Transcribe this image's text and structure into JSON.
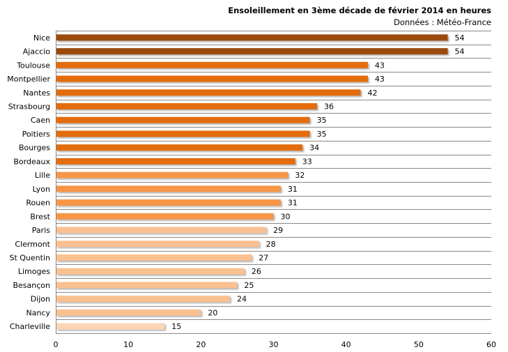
{
  "chart_data": {
    "type": "bar",
    "orientation": "horizontal",
    "title": "Ensoleillement en 3ème décade de février 2014 en heures",
    "subtitle": "Données : Météo-France",
    "categories": [
      "Nice",
      "Ajaccio",
      "Toulouse",
      "Montpellier",
      "Nantes",
      "Strasbourg",
      "Caen",
      "Poitiers",
      "Bourges",
      "Bordeaux",
      "Lille",
      "Lyon",
      "Rouen",
      "Brest",
      "Paris",
      "Clermont",
      "St Quentin",
      "Limoges",
      "Besançon",
      "Dijon",
      "Nancy",
      "Charleville"
    ],
    "values": [
      54,
      54,
      43,
      43,
      42,
      36,
      35,
      35,
      34,
      33,
      32,
      31,
      31,
      30,
      29,
      28,
      27,
      26,
      25,
      24,
      20,
      15
    ],
    "colors": [
      "#9c4a0a",
      "#9c4a0a",
      "#e36c0a",
      "#e36c0a",
      "#e36c0a",
      "#e36c0a",
      "#e36c0a",
      "#e36c0a",
      "#e36c0a",
      "#e36c0a",
      "#f79646",
      "#f79646",
      "#f79646",
      "#f79646",
      "#fac090",
      "#fac090",
      "#fac090",
      "#fac090",
      "#fac090",
      "#fac090",
      "#fac090",
      "#fcd5b4"
    ],
    "xlim": [
      0,
      60
    ],
    "xticks": [
      "0",
      "10",
      "20",
      "30",
      "40",
      "50",
      "60"
    ],
    "grid": "horizontal",
    "data_labels": true,
    "legend": "none"
  }
}
